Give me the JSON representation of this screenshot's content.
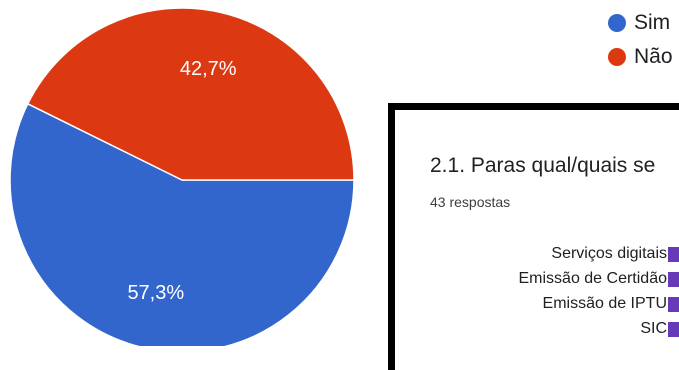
{
  "chart_data": [
    {
      "type": "pie",
      "slices": [
        {
          "label": "Sim",
          "value": 57.3,
          "display": "57,3%",
          "color": "#3366cc"
        },
        {
          "label": "Não",
          "value": 42.7,
          "display": "42,7%",
          "color": "#dc3912"
        }
      ],
      "legend_position": "top-right"
    },
    {
      "type": "bar",
      "title": "2.1. Paras qual/quais se",
      "subtitle": "43 respostas",
      "categories": [
        "Serviços digitais",
        "Emissão de Certidão",
        "Emissão de IPTU",
        "SIC"
      ],
      "bar_color": "#673ab7"
    }
  ]
}
